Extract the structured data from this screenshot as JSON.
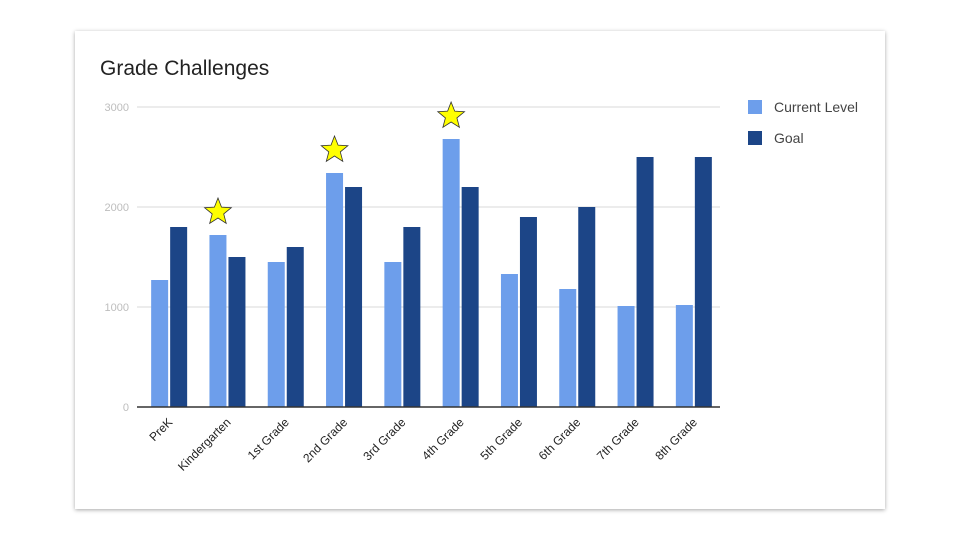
{
  "chart_data": {
    "type": "bar",
    "title": "Grade Challenges",
    "xlabel": "",
    "ylabel": "",
    "categories": [
      "PreK",
      "Kindergarten",
      "1st Grade",
      "2nd Grade",
      "3rd Grade",
      "4th Grade",
      "5th Grade",
      "6th Grade",
      "7th Grade",
      "8th Grade"
    ],
    "series": [
      {
        "name": "Current Level",
        "color": "#6d9eeb",
        "values": [
          1270,
          1720,
          1450,
          2340,
          1450,
          2680,
          1330,
          1180,
          1010,
          1020
        ]
      },
      {
        "name": "Goal",
        "color": "#1c4587",
        "values": [
          1800,
          1500,
          1600,
          2200,
          1800,
          2200,
          1900,
          2000,
          2500,
          2500
        ]
      }
    ],
    "ylim": [
      0,
      3000
    ],
    "yticks": [
      "0",
      "1000",
      "2000",
      "3000"
    ],
    "grid": true,
    "legend": "right",
    "annotations": {
      "star_markers": [
        "Kindergarten",
        "2nd Grade",
        "4th Grade"
      ],
      "star_color": "#ffff00"
    }
  }
}
